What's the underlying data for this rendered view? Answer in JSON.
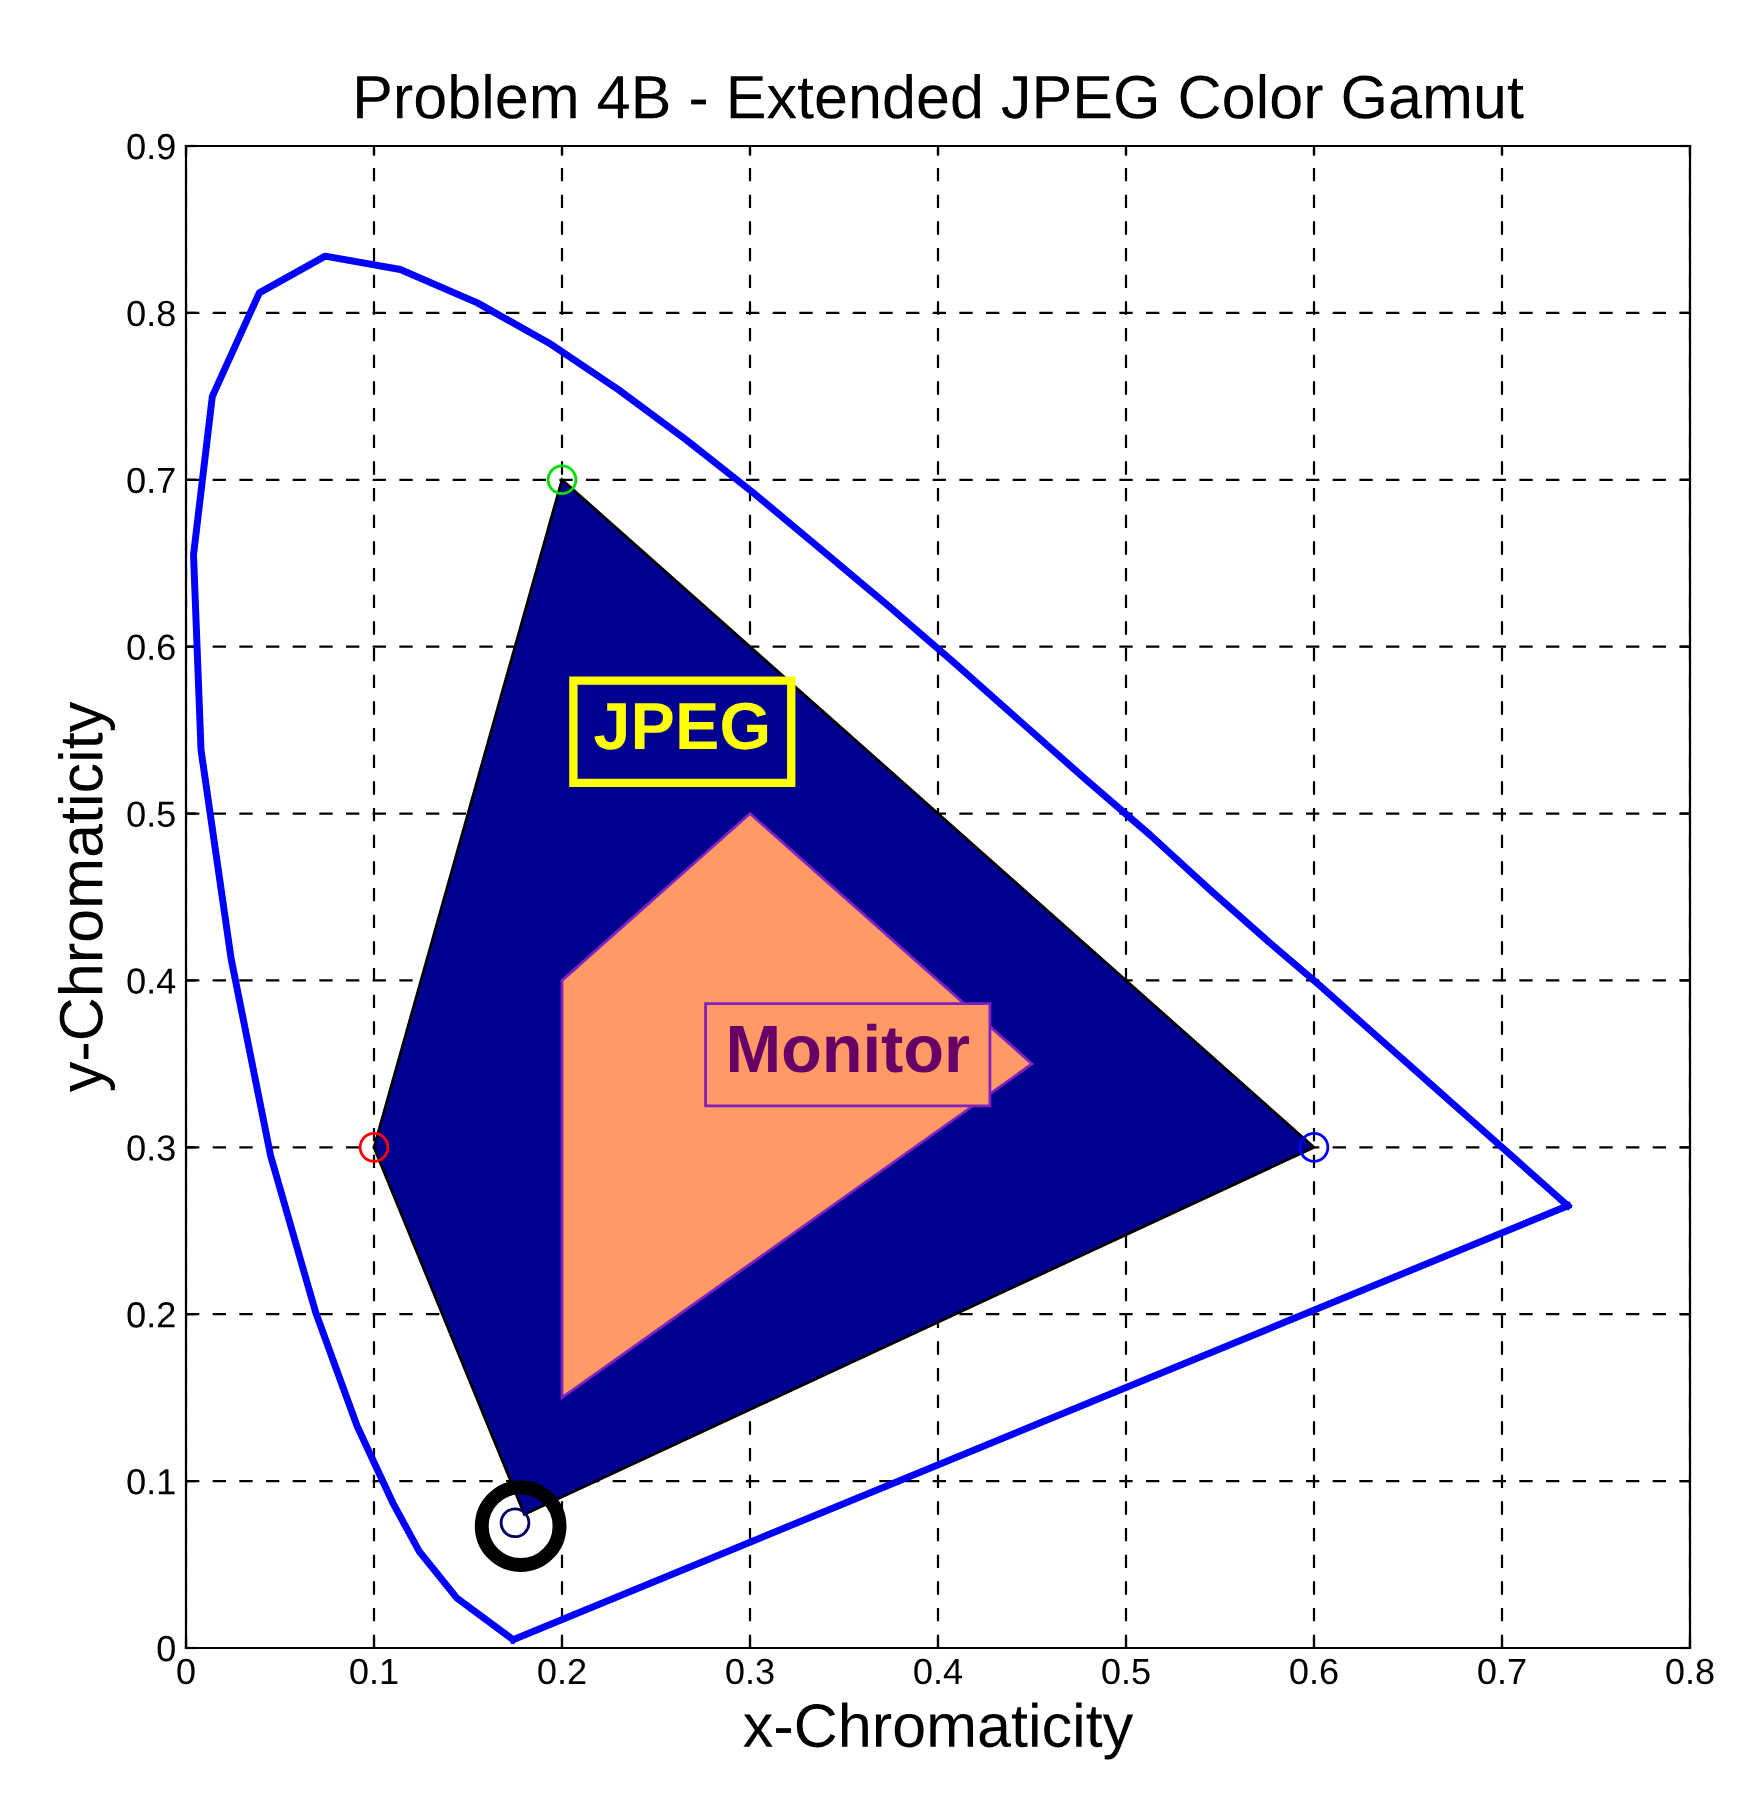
{
  "chart_data": {
    "type": "line",
    "title": "Problem 4B - Extended JPEG Color Gamut",
    "xlabel": "x-Chromaticity",
    "ylabel": "y-Chromaticity",
    "xlim": [
      0,
      0.8
    ],
    "ylim": [
      0,
      0.9
    ],
    "xticks": [
      0,
      0.1,
      0.2,
      0.3,
      0.4,
      0.5,
      0.6,
      0.7,
      0.8
    ],
    "yticks": [
      0,
      0.1,
      0.2,
      0.3,
      0.4,
      0.5,
      0.6,
      0.7,
      0.8,
      0.9
    ],
    "grid": true,
    "series": [
      {
        "color": "#0000ff",
        "x": [
          0.174,
          0.144,
          0.124,
          0.11,
          0.091,
          0.069,
          0.045,
          0.024,
          0.008,
          0.004,
          0.014,
          0.039,
          0.074,
          0.114,
          0.155,
          0.193,
          0.23,
          0.266,
          0.302,
          0.337,
          0.373,
          0.409,
          0.444,
          0.479,
          0.513,
          0.545,
          0.575,
          0.603,
          0.627,
          0.666,
          0.692,
          0.708,
          0.719,
          0.726,
          0.735
        ],
        "values": [
          0.005,
          0.03,
          0.058,
          0.087,
          0.133,
          0.201,
          0.295,
          0.413,
          0.538,
          0.655,
          0.75,
          0.812,
          0.834,
          0.826,
          0.806,
          0.782,
          0.754,
          0.724,
          0.692,
          0.659,
          0.625,
          0.59,
          0.555,
          0.52,
          0.487,
          0.454,
          0.424,
          0.397,
          0.373,
          0.334,
          0.308,
          0.292,
          0.281,
          0.274,
          0.265
        ]
      },
      {
        "color": "#0000ff",
        "x": [
          0.174,
          0.735
        ],
        "values": [
          0.005,
          0.265
        ]
      },
      {
        "type": "area",
        "color": "#000090",
        "x": [
          0.2,
          0.6,
          0.18,
          0.1
        ],
        "values": [
          0.7,
          0.3,
          0.08,
          0.3
        ]
      },
      {
        "type": "area",
        "color": "#ff9966",
        "x": [
          0.3,
          0.45,
          0.2,
          0.2
        ],
        "values": [
          0.5,
          0.35,
          0.15,
          0.4
        ]
      },
      {
        "type": "scatter",
        "marker": "circle",
        "colors": [
          "#ff0000",
          "#00dd00",
          "#0000ff",
          "#000060"
        ],
        "x": [
          0.1,
          0.2,
          0.6,
          0.175
        ],
        "values": [
          0.3,
          0.7,
          0.3,
          0.075
        ]
      },
      {
        "type": "scatter",
        "marker": "circle",
        "color": "#000000",
        "x": [
          0.178
        ],
        "values": [
          0.073
        ]
      }
    ],
    "annotations": [
      "JPEG",
      "Monitor"
    ]
  }
}
